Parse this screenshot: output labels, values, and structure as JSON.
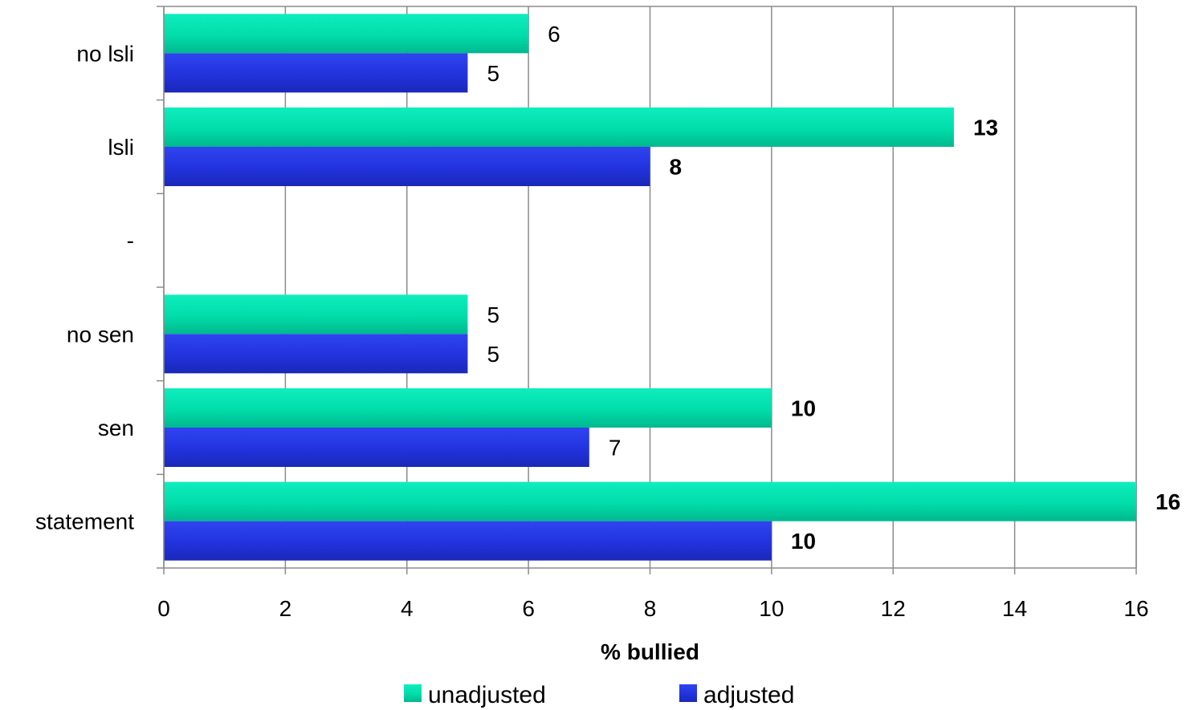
{
  "chart_data": {
    "type": "bar",
    "orientation": "horizontal",
    "categories": [
      "no lsli",
      "lsli",
      "-",
      "no sen",
      "sen",
      "statement"
    ],
    "series": [
      {
        "name": "unadjusted",
        "color": "#00DDAA",
        "values": [
          6,
          13,
          null,
          5,
          10,
          16
        ],
        "labels": [
          "6",
          "13",
          "",
          "5",
          "10",
          "16"
        ],
        "label_bold": [
          false,
          true,
          false,
          false,
          true,
          true
        ]
      },
      {
        "name": "adjusted",
        "color": "#2233DD",
        "values": [
          5,
          8,
          null,
          5,
          7,
          10
        ],
        "labels": [
          "5",
          "8",
          "",
          "5",
          "7",
          "10"
        ],
        "label_bold": [
          false,
          true,
          false,
          false,
          false,
          true
        ]
      }
    ],
    "xlabel": "% bullied",
    "ylabel": "",
    "title": "",
    "xlim": [
      0,
      16
    ],
    "xticks": [
      "0",
      "2",
      "4",
      "6",
      "8",
      "10",
      "12",
      "14",
      "16"
    ],
    "grid": "vertical",
    "legend_position": "bottom"
  }
}
